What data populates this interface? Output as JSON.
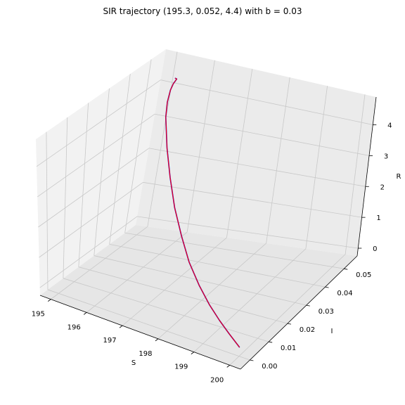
{
  "chart_data": {
    "type": "line",
    "projection": "3d",
    "title": "SIR trajectory (195.3, 0.052, 4.4) with b = 0.03",
    "xlabel": "S",
    "ylabel": "I",
    "zlabel": "R",
    "xlim": [
      194.7,
      200.3
    ],
    "ylim": [
      -0.005,
      0.057
    ],
    "zlim": [
      -0.25,
      4.9
    ],
    "xticks": [
      195,
      196,
      197,
      198,
      199,
      200
    ],
    "yticks": [
      0.0,
      0.01,
      0.02,
      0.03,
      0.04,
      0.05
    ],
    "zticks": [
      0,
      1,
      2,
      3,
      4
    ],
    "xtick_labels": [
      "195",
      "196",
      "197",
      "198",
      "199",
      "200"
    ],
    "ytick_labels": [
      "0.00",
      "0.01",
      "0.02",
      "0.03",
      "0.04",
      "0.05"
    ],
    "ztick_labels": [
      "0",
      "1",
      "2",
      "3",
      "4"
    ],
    "grid": true,
    "series": [
      {
        "color": "#0000ff",
        "S": [
          200.0,
          199.56,
          199.16,
          198.72,
          198.25,
          197.77,
          197.31,
          196.85,
          196.42,
          196.02,
          195.64,
          195.5,
          195.42,
          195.39,
          195.38,
          195.36,
          195.3
        ],
        "I": [
          0.0,
          0.0029,
          0.0056,
          0.0087,
          0.0124,
          0.0164,
          0.0212,
          0.0262,
          0.0316,
          0.0369,
          0.0424,
          0.0452,
          0.0477,
          0.0494,
          0.0506,
          0.0515,
          0.052
        ],
        "R": [
          0.0,
          0.09,
          0.2,
          0.37,
          0.62,
          0.98,
          1.42,
          1.94,
          2.52,
          3.1,
          3.72,
          4.02,
          4.26,
          4.37,
          4.41,
          4.415,
          4.4
        ]
      },
      {
        "color": "#ff0000",
        "S": [
          200.0,
          199.56,
          199.16,
          198.72,
          198.25,
          197.77,
          197.31,
          196.85,
          196.42,
          196.02,
          195.64,
          195.5,
          195.42,
          195.39,
          195.38,
          195.36,
          195.3
        ],
        "I": [
          0.0,
          0.0029,
          0.0056,
          0.0087,
          0.0124,
          0.0164,
          0.0212,
          0.0262,
          0.0316,
          0.0369,
          0.0424,
          0.0452,
          0.0477,
          0.0494,
          0.0506,
          0.0515,
          0.052
        ],
        "R": [
          0.0,
          0.09,
          0.2,
          0.37,
          0.62,
          0.98,
          1.42,
          1.94,
          2.52,
          3.1,
          3.72,
          4.02,
          4.26,
          4.37,
          4.41,
          4.415,
          4.4
        ]
      }
    ]
  }
}
